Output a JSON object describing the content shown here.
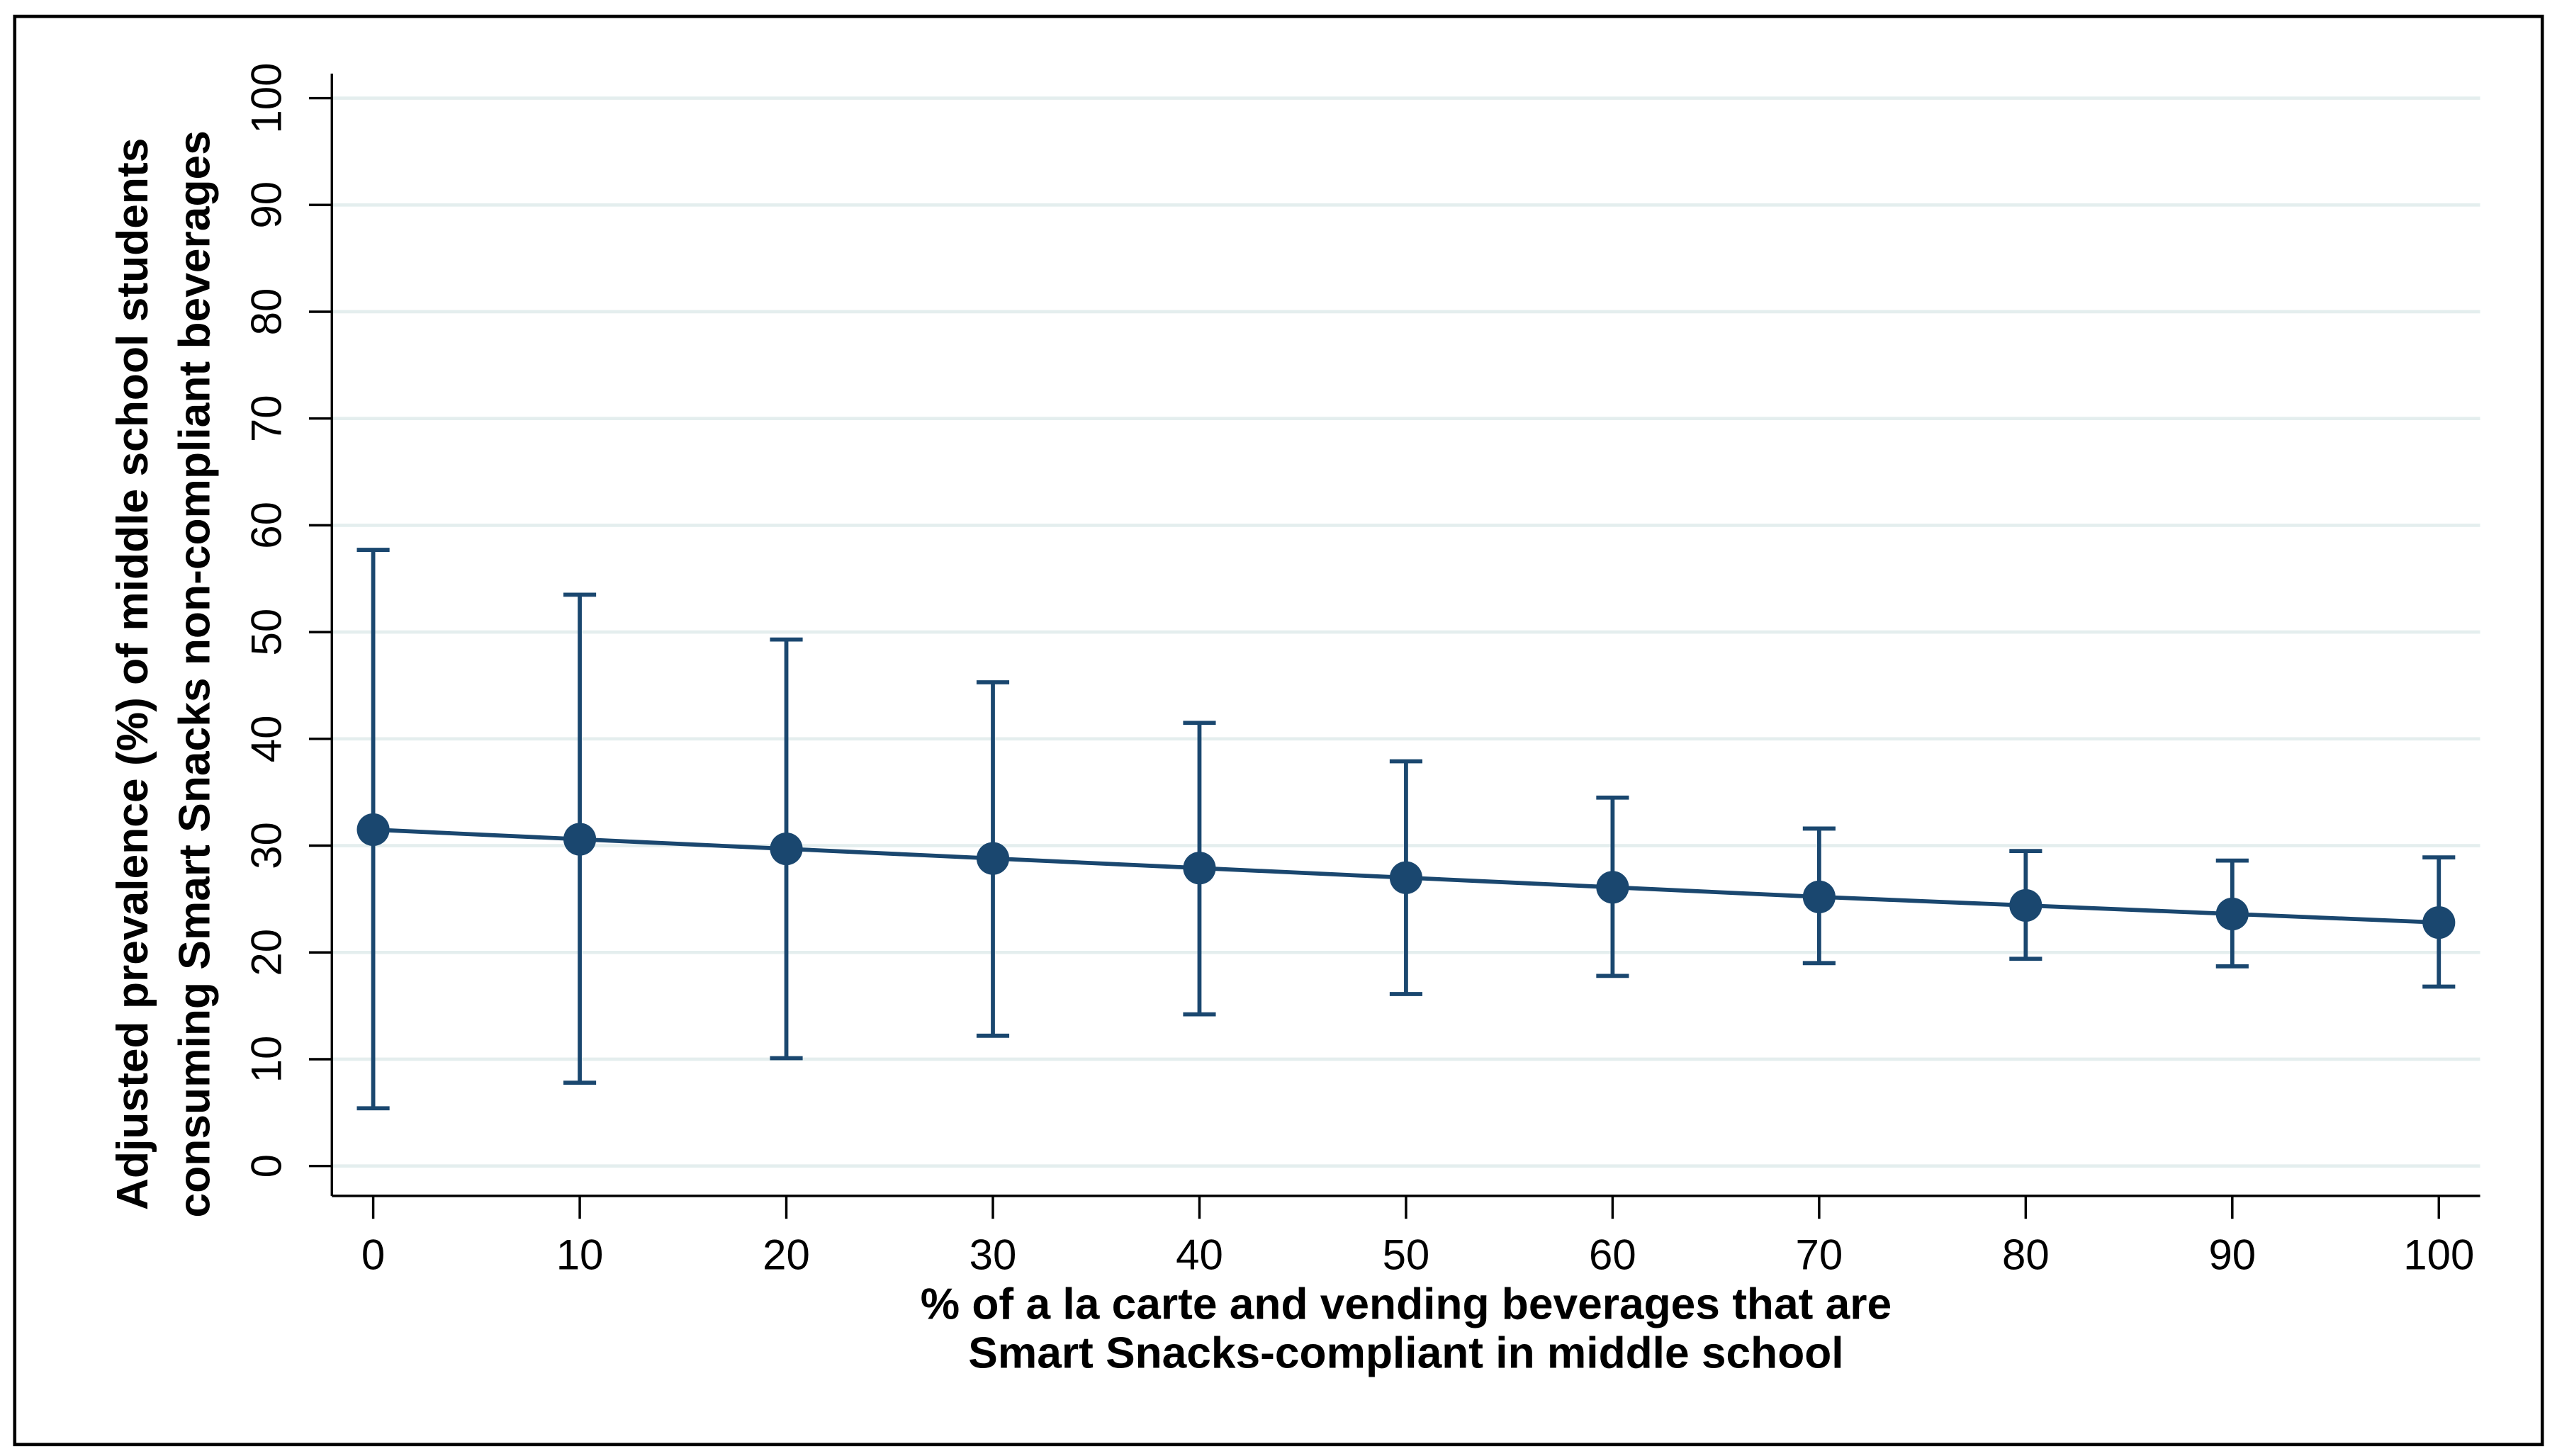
{
  "chart_data": {
    "type": "line-errorbar",
    "x_label": [
      "% of a la carte and vending beverages that are",
      "Smart Snacks-compliant in middle school"
    ],
    "y_label": [
      "Adjusted prevalence (%) of middle school students",
      "consuming Smart Snacks non-compliant beverages"
    ],
    "x": [
      0,
      10,
      20,
      30,
      40,
      50,
      60,
      70,
      80,
      90,
      100
    ],
    "values": [
      31.5,
      30.6,
      29.7,
      28.8,
      27.9,
      27.0,
      26.1,
      25.2,
      24.4,
      23.6,
      22.8
    ],
    "lower": [
      5.4,
      7.8,
      10.1,
      12.2,
      14.2,
      16.1,
      17.8,
      19.0,
      19.4,
      18.7,
      16.8
    ],
    "upper": [
      57.7,
      53.5,
      49.3,
      45.3,
      41.5,
      37.9,
      34.5,
      31.6,
      29.5,
      28.6,
      28.9
    ],
    "color": "#1a476f",
    "xlim": [
      -2,
      102
    ],
    "ylim": [
      -2.8,
      102.3
    ],
    "xticks": [
      0,
      10,
      20,
      30,
      40,
      50,
      60,
      70,
      80,
      90,
      100
    ],
    "yticks": [
      0,
      10,
      20,
      30,
      40,
      50,
      60,
      70,
      80,
      90,
      100
    ],
    "grid": true
  }
}
